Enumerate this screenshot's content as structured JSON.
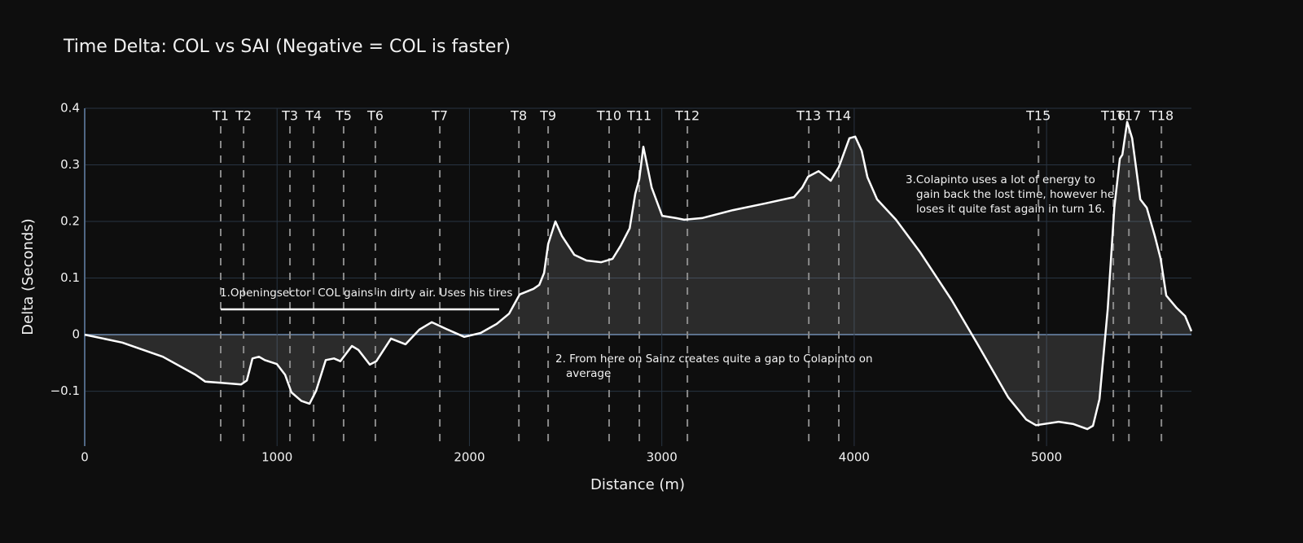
{
  "chart_data": {
    "type": "line",
    "title": "Time Delta: COL vs SAI (Negative = COL is faster)",
    "x_label": "Distance (m)",
    "y_label": "Delta (Seconds)",
    "color": "#ffffff",
    "fill": "rgba(255,255,255,0.12)",
    "grid": true,
    "xlim": [
      0,
      5753
    ],
    "ylim": [
      -0.197,
      0.4
    ],
    "xticks": [
      0,
      1000,
      2000,
      3000,
      4000,
      5000
    ],
    "yticks": [
      {
        "value": -0.1,
        "label": "−0.1"
      },
      0,
      0.1,
      0.2,
      0.3,
      0.4
    ],
    "x": [
      0,
      195,
      406,
      576,
      627,
      703,
      813,
      843,
      872,
      906,
      936,
      999,
      1042,
      1075,
      1126,
      1169,
      1203,
      1253,
      1296,
      1329,
      1389,
      1423,
      1482,
      1516,
      1592,
      1668,
      1740,
      1804,
      1880,
      1973,
      2058,
      2142,
      2206,
      2261,
      2333,
      2363,
      2388,
      2409,
      2447,
      2481,
      2545,
      2608,
      2685,
      2744,
      2786,
      2833,
      2862,
      2883,
      2904,
      2947,
      3002,
      3074,
      3116,
      3209,
      3370,
      3539,
      3687,
      3730,
      3760,
      3815,
      3878,
      3920,
      3975,
      4005,
      4039,
      4069,
      4119,
      4217,
      4344,
      4505,
      4640,
      4801,
      4894,
      4945,
      5063,
      5140,
      5212,
      5241,
      5275,
      5318,
      5352,
      5381,
      5394,
      5419,
      5445,
      5487,
      5521,
      5563,
      5593,
      5622,
      5677,
      5720,
      5753
    ],
    "values": [
      0,
      -0.014,
      -0.039,
      -0.071,
      -0.083,
      -0.085,
      -0.088,
      -0.081,
      -0.042,
      -0.039,
      -0.045,
      -0.052,
      -0.071,
      -0.102,
      -0.117,
      -0.122,
      -0.099,
      -0.045,
      -0.042,
      -0.047,
      -0.02,
      -0.027,
      -0.053,
      -0.047,
      -0.007,
      -0.017,
      0.009,
      0.022,
      0.01,
      -0.004,
      0.003,
      0.019,
      0.037,
      0.071,
      0.081,
      0.088,
      0.109,
      0.16,
      0.2,
      0.174,
      0.141,
      0.131,
      0.128,
      0.134,
      0.157,
      0.188,
      0.249,
      0.275,
      0.332,
      0.26,
      0.21,
      0.206,
      0.203,
      0.206,
      0.22,
      0.232,
      0.243,
      0.26,
      0.279,
      0.289,
      0.272,
      0.296,
      0.347,
      0.35,
      0.325,
      0.278,
      0.239,
      0.203,
      0.145,
      0.062,
      -0.016,
      -0.111,
      -0.15,
      -0.16,
      -0.154,
      -0.158,
      -0.167,
      -0.161,
      -0.114,
      0.045,
      0.224,
      0.311,
      0.318,
      0.376,
      0.347,
      0.239,
      0.224,
      0.174,
      0.134,
      0.069,
      0.047,
      0.033,
      0.006
    ],
    "turns": [
      {
        "label": "T1",
        "x": 707
      },
      {
        "label": "T2",
        "x": 826
      },
      {
        "label": "T3",
        "x": 1067
      },
      {
        "label": "T4",
        "x": 1190
      },
      {
        "label": "T5",
        "x": 1346
      },
      {
        "label": "T6",
        "x": 1511
      },
      {
        "label": "T7",
        "x": 1846
      },
      {
        "label": "T8",
        "x": 2257
      },
      {
        "label": "T9",
        "x": 2409
      },
      {
        "label": "T10",
        "x": 2726
      },
      {
        "label": "T11",
        "x": 2883
      },
      {
        "label": "T12",
        "x": 3133
      },
      {
        "label": "T13",
        "x": 3764
      },
      {
        "label": "T14",
        "x": 3920
      },
      {
        "label": "T15",
        "x": 4958
      },
      {
        "label": "T16",
        "x": 5347
      },
      {
        "label": "T17",
        "x": 5428
      },
      {
        "label": "T18",
        "x": 5597
      }
    ],
    "annotations": [
      {
        "lines": [
          "1.Openingsector  COL gains in dirty air. Uses his tires"
        ]
      },
      {
        "lines": [
          "2. From here on Sainz creates quite a gap to Colapinto on",
          "average"
        ]
      },
      {
        "lines": [
          "3.Colapinto uses a lot of energy to",
          "gain back the lost time, however he",
          "loses it quite fast again in turn 16."
        ]
      }
    ]
  }
}
